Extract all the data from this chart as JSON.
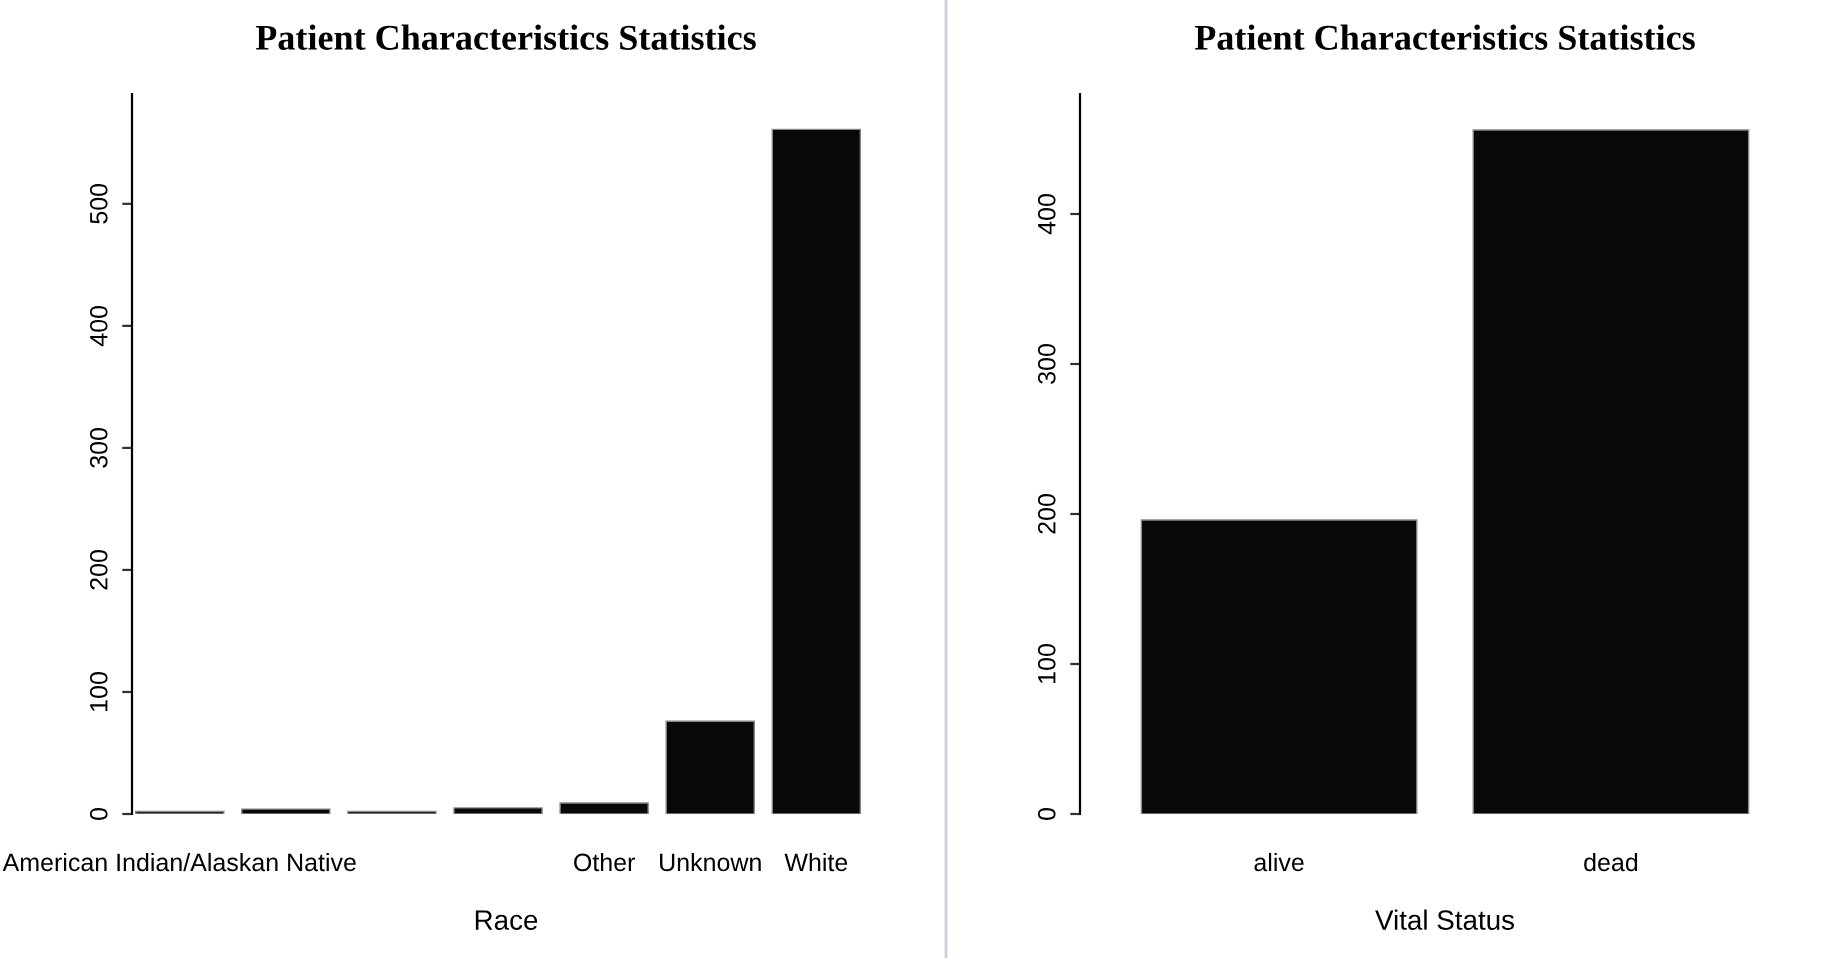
{
  "chart_data": [
    {
      "type": "bar",
      "title": "Patient Characteristics Statistics",
      "xlabel": "Race",
      "categories": [
        "American Indian/Alaskan Native",
        null,
        null,
        null,
        "Other",
        "Unknown",
        "White"
      ],
      "values": [
        2,
        4,
        2,
        5,
        9,
        76,
        561
      ],
      "color": "#080808",
      "ylim": [
        0,
        590
      ],
      "yticks": [
        0,
        100,
        200,
        300,
        400,
        500
      ],
      "grid": false,
      "legend": false
    },
    {
      "type": "bar",
      "title": "Patient Characteristics Statistics",
      "xlabel": "Vital Status",
      "categories": [
        "alive",
        "dead"
      ],
      "values": [
        196,
        456
      ],
      "color": "#080808",
      "ylim": [
        0,
        480
      ],
      "yticks": [
        0,
        100,
        200,
        300,
        400
      ],
      "grid": false,
      "legend": false
    }
  ]
}
